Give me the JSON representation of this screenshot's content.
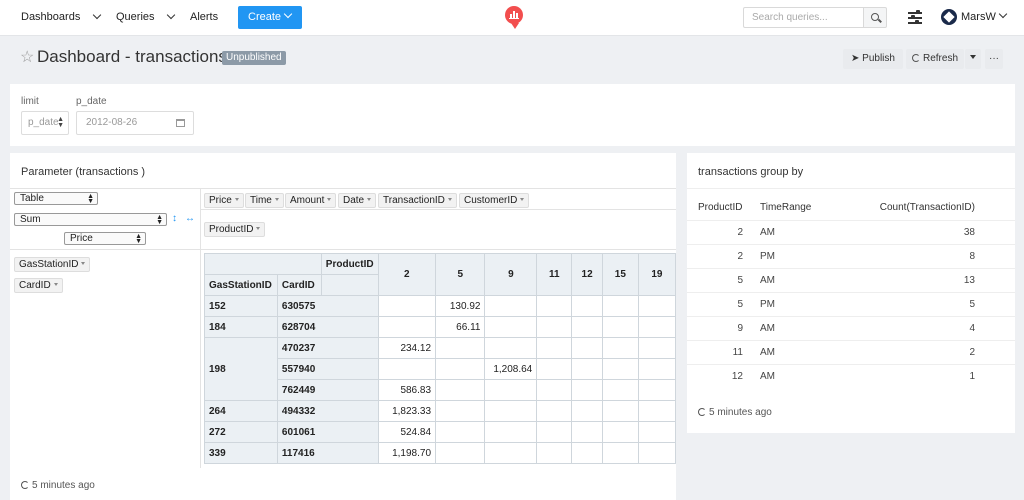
{
  "nav": {
    "dashboards": "Dashboards",
    "queries": "Queries",
    "alerts": "Alerts",
    "create": "Create",
    "search_placeholder": "Search queries...",
    "user": "MarsW"
  },
  "header": {
    "title": "Dashboard - transactions",
    "badge": "Unpublished",
    "publish": "Publish",
    "refresh": "Refresh",
    "more": "···"
  },
  "params": {
    "limit_label": "limit",
    "limit_value": "p_date",
    "p_date_label": "p_date",
    "p_date_value": "2012-08-26"
  },
  "pivot_widget": {
    "title": "Parameter (transactions )",
    "renderer": "Table",
    "aggregator": "Sum",
    "value_field": "Price",
    "unused_attrs": [
      "Price",
      "Time",
      "Amount",
      "Date",
      "TransactionID",
      "CustomerID"
    ],
    "col_attr": "ProductID",
    "row_attrs": [
      "GasStationID",
      "CardID"
    ],
    "col_header_label": "ProductID",
    "columns": [
      "2",
      "5",
      "9",
      "11",
      "12",
      "15",
      "19"
    ],
    "row_header_labels": [
      "GasStationID",
      "CardID"
    ],
    "rows": [
      {
        "station": "152",
        "card": "630575",
        "cells": [
          "",
          "130.92",
          "",
          "",
          "",
          "",
          ""
        ]
      },
      {
        "station": "184",
        "card": "628704",
        "cells": [
          "",
          "66.11",
          "",
          "",
          "",
          "",
          ""
        ]
      },
      {
        "station": "198",
        "card": "470237",
        "cells": [
          "234.12",
          "",
          "",
          "",
          "",
          "",
          ""
        ]
      },
      {
        "station": "",
        "card": "557940",
        "cells": [
          "",
          "",
          "1,208.64",
          "",
          "",
          "",
          ""
        ]
      },
      {
        "station": "",
        "card": "762449",
        "cells": [
          "586.83",
          "",
          "",
          "",
          "",
          "",
          ""
        ]
      },
      {
        "station": "264",
        "card": "494332",
        "cells": [
          "1,823.33",
          "",
          "",
          "",
          "",
          "",
          ""
        ]
      },
      {
        "station": "272",
        "card": "601061",
        "cells": [
          "524.84",
          "",
          "",
          "",
          "",
          "",
          ""
        ]
      },
      {
        "station": "339",
        "card": "117416",
        "cells": [
          "1,198.70",
          "",
          "",
          "",
          "",
          "",
          ""
        ]
      }
    ],
    "updated": "5 minutes ago"
  },
  "group_widget": {
    "title": "transactions group by",
    "headers": [
      "ProductID",
      "TimeRange",
      "Count(TransactionID)"
    ],
    "rows": [
      [
        "2",
        "AM",
        "38"
      ],
      [
        "2",
        "PM",
        "8"
      ],
      [
        "5",
        "AM",
        "13"
      ],
      [
        "5",
        "PM",
        "5"
      ],
      [
        "9",
        "AM",
        "4"
      ],
      [
        "11",
        "AM",
        "2"
      ],
      [
        "12",
        "AM",
        "1"
      ]
    ],
    "updated": "5 minutes ago"
  }
}
